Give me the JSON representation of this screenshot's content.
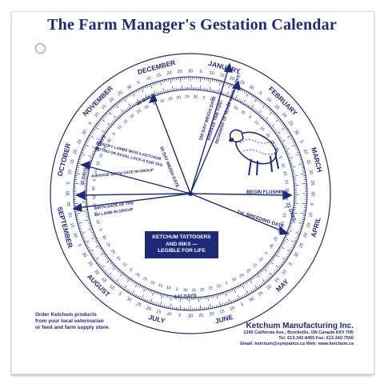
{
  "title": "The Farm Manager's Gestation Calendar",
  "months": [
    {
      "name": "JANUARY",
      "angle": 15
    },
    {
      "name": "FEBRUARY",
      "angle": 45
    },
    {
      "name": "MARCH",
      "angle": 75
    },
    {
      "name": "APRIL",
      "angle": 105
    },
    {
      "name": "MAY",
      "angle": 135
    },
    {
      "name": "JUNE",
      "angle": 165
    },
    {
      "name": "JULY",
      "angle": 195
    },
    {
      "name": "AUGUST",
      "angle": 225
    },
    {
      "name": "SEPTEMBER",
      "angle": 255
    },
    {
      "name": "OCTOBER",
      "angle": 285
    },
    {
      "name": "NOVEMBER",
      "angle": 315
    },
    {
      "name": "DECEMBER",
      "angle": 345
    }
  ],
  "day_labels": [
    "5",
    "10",
    "15",
    "20",
    "25",
    "30"
  ],
  "dial_labels": {
    "days_50": "50 DAYS",
    "days_147": "147 DAYS",
    "days_21": "21 DAYS",
    "weigh": "50 DAY WEIGH DATE",
    "weigh_100a": "100 DAY WEIGH DATE",
    "weigh_100b": "AVERAGE TIME FOR",
    "weigh_100c": "BEGINNING OF HEAVY LAMB MARKET",
    "tattoo_a": "IDENTIFY LAMBS WITH A KETCHUM",
    "tattoo_b": "TATTOO OR ROYAL LOCK-A EAR TAG",
    "avg_birth": "AVERAGE BIRTH DATE IN GROUP",
    "first_lamb_a": "BIRTH DATE OF THE",
    "first_lamb_b": "1st LAMB IN GROUP",
    "days_15": "15 DAYS",
    "days_35": "35 DAYS",
    "flushing": "BEGIN FLUSHING",
    "breeding": "1st. BREEDING DATE"
  },
  "promo": {
    "line1": "KETCHUM TATTOOERS",
    "line2": "AND INKS —",
    "line3": "LEGIBLE FOR LIFE"
  },
  "footer_left": {
    "line1": "Order Ketchum products",
    "line2": "from your local veterinarian",
    "line3": "or feed and farm supply store."
  },
  "company": {
    "name": "Ketchum Manufacturing Inc.",
    "address": "1245 California Ave., Brockville, ON Canada K6V 7N5",
    "phone": "Tel: 613-342-8455   Fax: 613-342-7550",
    "web": "Email: ketchum@sympatico.ca   Web: www.ketchum.ca"
  },
  "colors": {
    "ink": "#1e2a78",
    "paper": "#ffffff"
  },
  "icons": [
    "sheep-illustration",
    "punch-hole"
  ]
}
